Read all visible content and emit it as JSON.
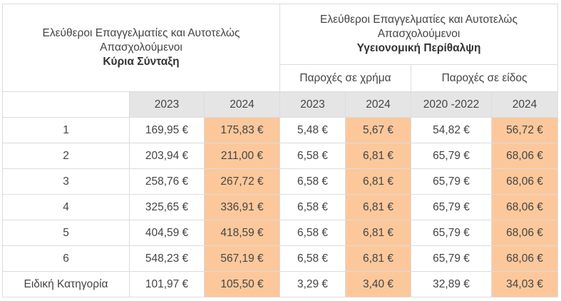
{
  "header": {
    "left": {
      "line1": "Ελεύθεροι Επαγγελματίες και Αυτοτελώς",
      "line2": "Απασχολούμενοι",
      "line3": "Κύρια Σύνταξη"
    },
    "right": {
      "line1": "Ελεύθεροι Επαγγελματίες και Αυτοτελώς",
      "line2": "Απασχολούμενοι",
      "line3": "Υγειονομική Περίθαλψη"
    },
    "cash_benefits": "Παροχές σε χρήμα",
    "kind_benefits": "Παροχές σε είδος"
  },
  "years": [
    "",
    "2023",
    "2024",
    "2023",
    "2024",
    "2020 -2022",
    "2024"
  ],
  "rows": [
    {
      "category": "1",
      "values": [
        "169,95 €",
        "175,83 €",
        "5,48 €",
        "5,67 €",
        "54,82 €",
        "56,72 €"
      ]
    },
    {
      "category": "2",
      "values": [
        "203,94 €",
        "211,00 €",
        "6,58 €",
        "6,81 €",
        "65,79 €",
        "68,06 €"
      ]
    },
    {
      "category": "3",
      "values": [
        "258,76 €",
        "267,72 €",
        "6,58 €",
        "6,81 €",
        "65,79 €",
        "68,06 €"
      ]
    },
    {
      "category": "4",
      "values": [
        "325,65 €",
        "336,91 €",
        "6,58 €",
        "6,81 €",
        "65,79 €",
        "68,06 €"
      ]
    },
    {
      "category": "5",
      "values": [
        "404,59 €",
        "418,59 €",
        "6,58 €",
        "6,81 €",
        "65,79 €",
        "68,06 €"
      ]
    },
    {
      "category": "6",
      "values": [
        "548,23 €",
        "567,19 €",
        "6,58 €",
        "6,81 €",
        "65,79 €",
        "68,06 €"
      ]
    },
    {
      "category": "Ειδική Κατηγορία",
      "values": [
        "101,97 €",
        "105,50 €",
        "3,29 €",
        "3,40 €",
        "32,89 €",
        "34,03 €"
      ]
    }
  ],
  "colors": {
    "highlight": "#fcc89b",
    "year_header": "#e5e5e5",
    "border": "#dcdcdc"
  }
}
